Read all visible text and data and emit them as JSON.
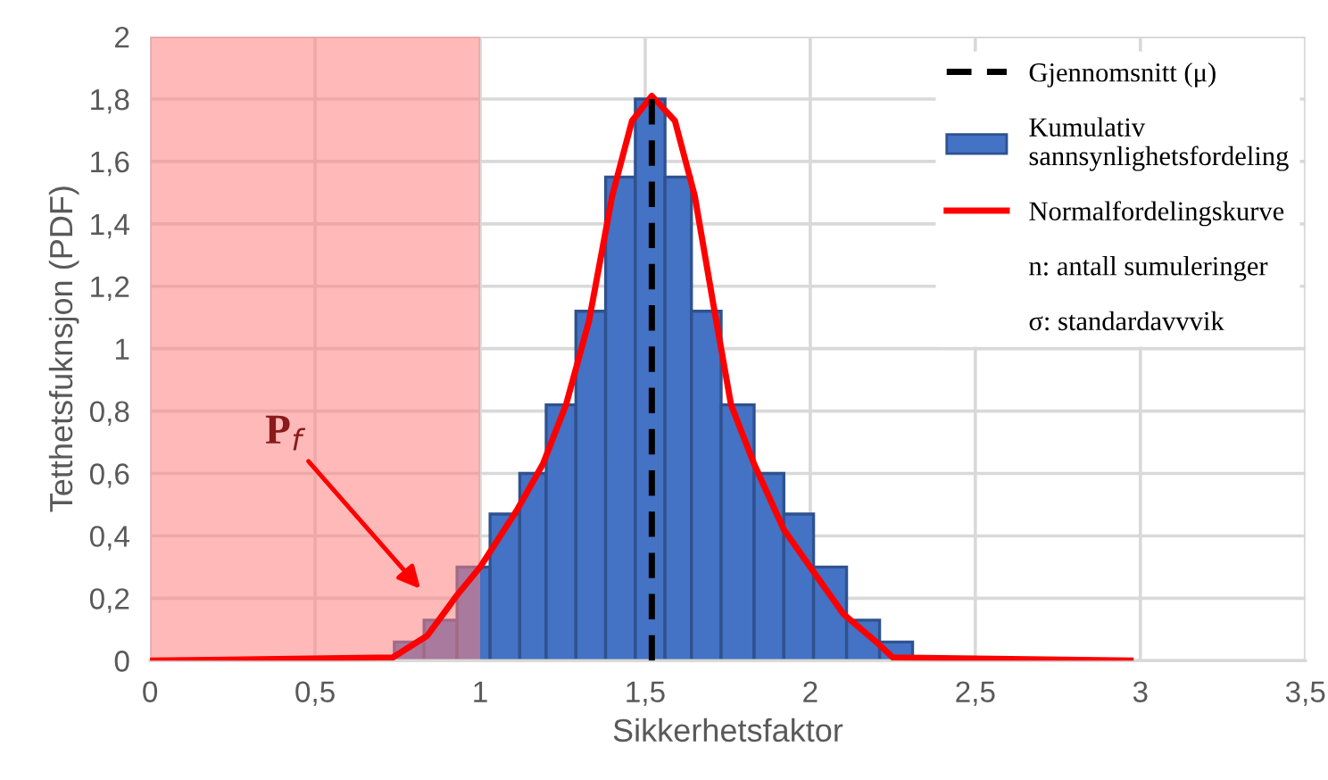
{
  "chart_data": {
    "type": "histogram",
    "xlabel": "Sikkerhetsfaktor",
    "ylabel": "Tetthetsfuknsjon (PDF)",
    "xlim": [
      0,
      3.5
    ],
    "ylim": [
      0,
      2
    ],
    "xticks": [
      0,
      {
        "value": 0.5,
        "label": "0,5"
      },
      1,
      {
        "value": 1.5,
        "label": "1,5"
      },
      2,
      {
        "value": 2.5,
        "label": "2,5"
      },
      3,
      {
        "value": 3.5,
        "label": "3,5"
      }
    ],
    "yticks": [
      0,
      {
        "value": 0.2,
        "label": "0,2"
      },
      {
        "value": 0.4,
        "label": "0,4"
      },
      {
        "value": 0.6,
        "label": "0,6"
      },
      {
        "value": 0.8,
        "label": "0,8"
      },
      1,
      {
        "value": 1.2,
        "label": "1,2"
      },
      {
        "value": 1.4,
        "label": "1,4"
      },
      {
        "value": 1.6,
        "label": "1,6"
      },
      {
        "value": 1.8,
        "label": "1,8"
      },
      2
    ],
    "grid": true,
    "legend": "right",
    "marker": "none",
    "series": [
      {
        "type": "line",
        "name": "Gjennomsnitt (μ)",
        "x": [
          1.52,
          1.52
        ],
        "values": [
          0,
          1.8
        ],
        "color": "#000000",
        "line_style": "dashed"
      },
      {
        "name": "Kumulativ sannsynlighetsfordeling",
        "color": "#4472c4",
        "bins": [
          0.74,
          0.83,
          0.93,
          1.03,
          1.12,
          1.2,
          1.29,
          1.38,
          1.47,
          1.56,
          1.64,
          1.73,
          1.83,
          1.92,
          2.01,
          2.11,
          2.21,
          2.31
        ],
        "values": [
          0.06,
          0.13,
          0.3,
          0.47,
          0.6,
          0.82,
          1.12,
          1.55,
          1.8,
          1.55,
          1.12,
          0.82,
          0.6,
          0.47,
          0.3,
          0.13,
          0.06
        ]
      },
      {
        "type": "line",
        "name": "Normalfordelingskurve",
        "color": "#ff0000",
        "line_style": "solid",
        "x": [
          0,
          0.735,
          0.84,
          0.93,
          1.0,
          1.11,
          1.19,
          1.26,
          1.33,
          1.4,
          1.46,
          1.52,
          1.59,
          1.65,
          1.71,
          1.76,
          1.83,
          1.92,
          2.02,
          2.1,
          2.2,
          2.25,
          2.97
        ],
        "values": [
          0,
          0.01,
          0.08,
          0.21,
          0.3,
          0.48,
          0.63,
          0.82,
          1.09,
          1.49,
          1.73,
          1.81,
          1.73,
          1.49,
          1.12,
          0.82,
          0.63,
          0.42,
          0.27,
          0.15,
          0.06,
          0.01,
          0
        ]
      }
    ],
    "bands": [
      {
        "axis": "x",
        "from": 0,
        "to": 1,
        "color": "#ff8080"
      }
    ],
    "annotations": [
      "P$_{f}$",
      "n: antall sumuleringer",
      "σ: standardavvvik"
    ]
  }
}
